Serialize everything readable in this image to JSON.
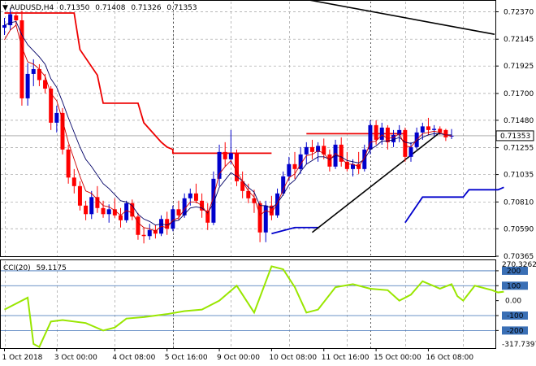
{
  "header": {
    "arrow": "▼",
    "symbol": "AUDUSD,H4",
    "open": "0.71350",
    "high": "0.71408",
    "low": "0.71326",
    "close": "0.71353"
  },
  "cci_header": {
    "label": "CCI(20)",
    "value": "59.1175"
  },
  "price_axis": {
    "ticks": [
      "0.72370",
      "0.72145",
      "0.71925",
      "0.71700",
      "0.71480",
      "0.71255",
      "0.71035",
      "0.70810",
      "0.70590",
      "0.70365"
    ],
    "current_price": "0.71353"
  },
  "cci_axis": {
    "max_label": "270.3262",
    "min_label": "-317.7397",
    "level_labels": [
      "200",
      "100",
      "0.00",
      "-100",
      "-200"
    ]
  },
  "time_axis": {
    "labels": [
      "1 Oct 2018",
      "3 Oct 00:00",
      "4 Oct 08:00",
      "5 Oct 16:00",
      "9 Oct 00:00",
      "10 Oct 08:00",
      "11 Oct 16:00",
      "15 Oct 00:00",
      "16 Oct 08:00"
    ]
  },
  "colors": {
    "bull": "#0000cc",
    "bear": "#ff0000",
    "ma_fast": "#cc0000",
    "ma_slow": "#000066",
    "stop_red": "#ee0000",
    "stop_blue": "#0000cc",
    "cci": "#99e600",
    "cci_level": "#3a6fb5",
    "current_price_box": "#ffffff"
  },
  "chart_data": {
    "type": "candlestick",
    "symbol": "AUDUSD",
    "timeframe": "H4",
    "y_range": [
      0.70365,
      0.7246
    ],
    "candles": [
      {
        "o": 0.7224,
        "h": 0.7232,
        "l": 0.7218,
        "c": 0.7226
      },
      {
        "o": 0.7226,
        "h": 0.724,
        "l": 0.7222,
        "c": 0.7235
      },
      {
        "o": 0.7234,
        "h": 0.7236,
        "l": 0.7226,
        "c": 0.723
      },
      {
        "o": 0.723,
        "h": 0.7238,
        "l": 0.716,
        "c": 0.7166
      },
      {
        "o": 0.7166,
        "h": 0.7195,
        "l": 0.716,
        "c": 0.7186
      },
      {
        "o": 0.7186,
        "h": 0.7198,
        "l": 0.7176,
        "c": 0.719
      },
      {
        "o": 0.719,
        "h": 0.7194,
        "l": 0.7176,
        "c": 0.7181
      },
      {
        "o": 0.7181,
        "h": 0.7186,
        "l": 0.717,
        "c": 0.7174
      },
      {
        "o": 0.7174,
        "h": 0.7176,
        "l": 0.714,
        "c": 0.7146
      },
      {
        "o": 0.7146,
        "h": 0.716,
        "l": 0.7138,
        "c": 0.7154
      },
      {
        "o": 0.7154,
        "h": 0.7158,
        "l": 0.712,
        "c": 0.7124
      },
      {
        "o": 0.7124,
        "h": 0.7128,
        "l": 0.7096,
        "c": 0.7101
      },
      {
        "o": 0.7101,
        "h": 0.7108,
        "l": 0.7088,
        "c": 0.7094
      },
      {
        "o": 0.7094,
        "h": 0.7098,
        "l": 0.7074,
        "c": 0.7078
      },
      {
        "o": 0.7078,
        "h": 0.7082,
        "l": 0.7066,
        "c": 0.7071
      },
      {
        "o": 0.7071,
        "h": 0.709,
        "l": 0.7067,
        "c": 0.7085
      },
      {
        "o": 0.7085,
        "h": 0.7094,
        "l": 0.7072,
        "c": 0.7076
      },
      {
        "o": 0.7076,
        "h": 0.7082,
        "l": 0.7068,
        "c": 0.7071
      },
      {
        "o": 0.7071,
        "h": 0.7079,
        "l": 0.7064,
        "c": 0.7075
      },
      {
        "o": 0.7075,
        "h": 0.7084,
        "l": 0.7068,
        "c": 0.707
      },
      {
        "o": 0.707,
        "h": 0.7076,
        "l": 0.706,
        "c": 0.7066
      },
      {
        "o": 0.7066,
        "h": 0.7082,
        "l": 0.7064,
        "c": 0.708
      },
      {
        "o": 0.708,
        "h": 0.7083,
        "l": 0.7066,
        "c": 0.7069
      },
      {
        "o": 0.7069,
        "h": 0.7072,
        "l": 0.705,
        "c": 0.7054
      },
      {
        "o": 0.7054,
        "h": 0.706,
        "l": 0.7047,
        "c": 0.7053
      },
      {
        "o": 0.7053,
        "h": 0.7063,
        "l": 0.705,
        "c": 0.7058
      },
      {
        "o": 0.7058,
        "h": 0.7062,
        "l": 0.7051,
        "c": 0.7055
      },
      {
        "o": 0.7055,
        "h": 0.707,
        "l": 0.7053,
        "c": 0.7067
      },
      {
        "o": 0.7067,
        "h": 0.7073,
        "l": 0.7054,
        "c": 0.7059
      },
      {
        "o": 0.7059,
        "h": 0.7078,
        "l": 0.7057,
        "c": 0.7075
      },
      {
        "o": 0.7075,
        "h": 0.7082,
        "l": 0.7066,
        "c": 0.707
      },
      {
        "o": 0.707,
        "h": 0.7088,
        "l": 0.7068,
        "c": 0.7084
      },
      {
        "o": 0.7084,
        "h": 0.7092,
        "l": 0.7078,
        "c": 0.7088
      },
      {
        "o": 0.7088,
        "h": 0.7096,
        "l": 0.708,
        "c": 0.7082
      },
      {
        "o": 0.7082,
        "h": 0.7088,
        "l": 0.7068,
        "c": 0.7074
      },
      {
        "o": 0.7074,
        "h": 0.708,
        "l": 0.7058,
        "c": 0.7064
      },
      {
        "o": 0.7064,
        "h": 0.7106,
        "l": 0.7062,
        "c": 0.71
      },
      {
        "o": 0.71,
        "h": 0.7128,
        "l": 0.7094,
        "c": 0.7122
      },
      {
        "o": 0.7122,
        "h": 0.713,
        "l": 0.711,
        "c": 0.7116
      },
      {
        "o": 0.7116,
        "h": 0.714,
        "l": 0.7112,
        "c": 0.7121
      },
      {
        "o": 0.7121,
        "h": 0.7124,
        "l": 0.7094,
        "c": 0.7098
      },
      {
        "o": 0.7098,
        "h": 0.7106,
        "l": 0.7084,
        "c": 0.709
      },
      {
        "o": 0.709,
        "h": 0.7096,
        "l": 0.708,
        "c": 0.7084
      },
      {
        "o": 0.7084,
        "h": 0.7091,
        "l": 0.7072,
        "c": 0.708
      },
      {
        "o": 0.708,
        "h": 0.7082,
        "l": 0.7048,
        "c": 0.7056
      },
      {
        "o": 0.7056,
        "h": 0.7082,
        "l": 0.7048,
        "c": 0.7078
      },
      {
        "o": 0.7078,
        "h": 0.7086,
        "l": 0.7066,
        "c": 0.707
      },
      {
        "o": 0.707,
        "h": 0.7092,
        "l": 0.7068,
        "c": 0.7088
      },
      {
        "o": 0.7088,
        "h": 0.7106,
        "l": 0.7086,
        "c": 0.7102
      },
      {
        "o": 0.7102,
        "h": 0.7118,
        "l": 0.7098,
        "c": 0.7112
      },
      {
        "o": 0.7112,
        "h": 0.7122,
        "l": 0.71,
        "c": 0.7108
      },
      {
        "o": 0.7108,
        "h": 0.7126,
        "l": 0.7104,
        "c": 0.712
      },
      {
        "o": 0.712,
        "h": 0.713,
        "l": 0.7112,
        "c": 0.7126
      },
      {
        "o": 0.7126,
        "h": 0.7132,
        "l": 0.7116,
        "c": 0.7122
      },
      {
        "o": 0.7122,
        "h": 0.713,
        "l": 0.7114,
        "c": 0.7127
      },
      {
        "o": 0.7127,
        "h": 0.7133,
        "l": 0.7116,
        "c": 0.712
      },
      {
        "o": 0.712,
        "h": 0.7124,
        "l": 0.7106,
        "c": 0.711
      },
      {
        "o": 0.711,
        "h": 0.7132,
        "l": 0.7108,
        "c": 0.7128
      },
      {
        "o": 0.7128,
        "h": 0.7134,
        "l": 0.711,
        "c": 0.7114
      },
      {
        "o": 0.7114,
        "h": 0.7122,
        "l": 0.7106,
        "c": 0.7108
      },
      {
        "o": 0.7108,
        "h": 0.7116,
        "l": 0.7102,
        "c": 0.7112
      },
      {
        "o": 0.7112,
        "h": 0.7122,
        "l": 0.7104,
        "c": 0.7108
      },
      {
        "o": 0.7108,
        "h": 0.7128,
        "l": 0.7106,
        "c": 0.7124
      },
      {
        "o": 0.7124,
        "h": 0.7148,
        "l": 0.712,
        "c": 0.7144
      },
      {
        "o": 0.7144,
        "h": 0.7148,
        "l": 0.7128,
        "c": 0.7132
      },
      {
        "o": 0.7132,
        "h": 0.7146,
        "l": 0.7128,
        "c": 0.7142
      },
      {
        "o": 0.7142,
        "h": 0.7144,
        "l": 0.7124,
        "c": 0.713
      },
      {
        "o": 0.713,
        "h": 0.714,
        "l": 0.7126,
        "c": 0.7136
      },
      {
        "o": 0.7136,
        "h": 0.7144,
        "l": 0.713,
        "c": 0.714
      },
      {
        "o": 0.714,
        "h": 0.7142,
        "l": 0.7114,
        "c": 0.7118
      },
      {
        "o": 0.7118,
        "h": 0.713,
        "l": 0.7114,
        "c": 0.7126
      },
      {
        "o": 0.7126,
        "h": 0.7142,
        "l": 0.7124,
        "c": 0.7138
      },
      {
        "o": 0.7138,
        "h": 0.7146,
        "l": 0.7132,
        "c": 0.7143
      },
      {
        "o": 0.7143,
        "h": 0.715,
        "l": 0.7136,
        "c": 0.714
      },
      {
        "o": 0.714,
        "h": 0.7144,
        "l": 0.7135,
        "c": 0.7141
      },
      {
        "o": 0.7141,
        "h": 0.7143,
        "l": 0.7136,
        "c": 0.7138
      },
      {
        "o": 0.714,
        "h": 0.7141,
        "l": 0.7131,
        "c": 0.7134
      },
      {
        "o": 0.7135,
        "h": 0.71408,
        "l": 0.71326,
        "c": 0.71353
      }
    ],
    "ma_fast": [
      0.7214,
      0.7222,
      0.7226,
      0.7208,
      0.7196,
      0.7194,
      0.719,
      0.7184,
      0.717,
      0.7164,
      0.7148,
      0.713,
      0.7116,
      0.7102,
      0.709,
      0.7088,
      0.7083,
      0.7078,
      0.7077,
      0.7074,
      0.707,
      0.7074,
      0.7072,
      0.7064,
      0.706,
      0.7059,
      0.7057,
      0.7061,
      0.706,
      0.7066,
      0.7068,
      0.7075,
      0.7081,
      0.7081,
      0.7078,
      0.7071,
      0.7085,
      0.7104,
      0.711,
      0.7115,
      0.7106,
      0.7098,
      0.709,
      0.7085,
      0.707,
      0.7074,
      0.7072,
      0.708,
      0.7091,
      0.7101,
      0.7104,
      0.7112,
      0.7119,
      0.712,
      0.7123,
      0.7121,
      0.7115,
      0.7121,
      0.7117,
      0.7112,
      0.7112,
      0.711,
      0.7117,
      0.713,
      0.7131,
      0.7136,
      0.7133,
      0.7134,
      0.7137,
      0.7127,
      0.7126,
      0.7132,
      0.7137,
      0.7138,
      0.7139,
      0.7138,
      0.7136,
      0.7135
    ],
    "ma_slow": [
      0.7226,
      0.7228,
      0.7229,
      0.7218,
      0.721,
      0.7205,
      0.72,
      0.7194,
      0.7182,
      0.7175,
      0.7163,
      0.715,
      0.7138,
      0.7126,
      0.7116,
      0.711,
      0.7103,
      0.7096,
      0.7092,
      0.7087,
      0.7082,
      0.7081,
      0.7078,
      0.7071,
      0.7067,
      0.7065,
      0.7062,
      0.7063,
      0.7062,
      0.7065,
      0.7066,
      0.7071,
      0.7076,
      0.7077,
      0.7076,
      0.7072,
      0.708,
      0.7093,
      0.7099,
      0.7105,
      0.7102,
      0.7098,
      0.7093,
      0.7089,
      0.7078,
      0.7078,
      0.7076,
      0.708,
      0.7087,
      0.7095,
      0.7099,
      0.7106,
      0.7112,
      0.7115,
      0.7118,
      0.7118,
      0.7116,
      0.7119,
      0.7118,
      0.7115,
      0.7114,
      0.7113,
      0.7116,
      0.7124,
      0.7127,
      0.7131,
      0.7131,
      0.7132,
      0.7134,
      0.713,
      0.7129,
      0.7131,
      0.7134,
      0.7136,
      0.7137,
      0.7137,
      0.7136,
      0.7136
    ],
    "stop_red": [
      [
        [
          0,
          0.7236
        ],
        [
          4,
          0.7236
        ],
        [
          4,
          0.7236
        ],
        [
          12,
          0.7236
        ],
        [
          13,
          0.7206
        ],
        [
          16,
          0.7185
        ],
        [
          17,
          0.7162
        ],
        [
          23,
          0.7162
        ],
        [
          24,
          0.7146
        ],
        [
          27,
          0.713
        ],
        [
          28,
          0.7126
        ],
        [
          29,
          0.7124
        ],
        [
          29,
          0.7121
        ],
        [
          34,
          0.7121
        ],
        [
          34,
          0.7121
        ],
        [
          46,
          0.7121
        ]
      ],
      [
        [
          52,
          0.7137
        ],
        [
          69,
          0.7137
        ]
      ]
    ],
    "stop_blue": [
      [
        [
          46,
          0.7055
        ],
        [
          50,
          0.706
        ],
        [
          50,
          0.706
        ],
        [
          54,
          0.706
        ]
      ],
      [
        [
          69,
          0.7064
        ],
        [
          72,
          0.7085
        ],
        [
          73,
          0.7085
        ],
        [
          79,
          0.7085
        ],
        [
          80,
          0.7091
        ],
        [
          85,
          0.7091
        ],
        [
          86,
          0.7093
        ]
      ]
    ],
    "trendlines": [
      {
        "x1": 43,
        "y1": 0.7255,
        "x2": 91,
        "y2": 0.72185
      },
      {
        "x1": 53,
        "y1": 0.7056,
        "x2": 75,
        "y2": 0.7138
      }
    ],
    "cci": [
      {
        "x": 0,
        "y": -60
      },
      {
        "x": 4,
        "y": 20
      },
      {
        "x": 5,
        "y": -290
      },
      {
        "x": 6,
        "y": -310
      },
      {
        "x": 8,
        "y": -140
      },
      {
        "x": 10,
        "y": -130
      },
      {
        "x": 14,
        "y": -150
      },
      {
        "x": 17,
        "y": -200
      },
      {
        "x": 19,
        "y": -180
      },
      {
        "x": 21,
        "y": -120
      },
      {
        "x": 24,
        "y": -110
      },
      {
        "x": 28,
        "y": -90
      },
      {
        "x": 31,
        "y": -70
      },
      {
        "x": 34,
        "y": -60
      },
      {
        "x": 37,
        "y": 0
      },
      {
        "x": 40,
        "y": 100
      },
      {
        "x": 43,
        "y": -80
      },
      {
        "x": 46,
        "y": 230
      },
      {
        "x": 48,
        "y": 210
      },
      {
        "x": 50,
        "y": 90
      },
      {
        "x": 52,
        "y": -80
      },
      {
        "x": 54,
        "y": -60
      },
      {
        "x": 57,
        "y": 90
      },
      {
        "x": 60,
        "y": 110
      },
      {
        "x": 63,
        "y": 80
      },
      {
        "x": 66,
        "y": 70
      },
      {
        "x": 68,
        "y": 0
      },
      {
        "x": 70,
        "y": 40
      },
      {
        "x": 72,
        "y": 130
      },
      {
        "x": 75,
        "y": 80
      },
      {
        "x": 77,
        "y": 110
      },
      {
        "x": 78,
        "y": 30
      },
      {
        "x": 79,
        "y": 0
      },
      {
        "x": 81,
        "y": 100
      },
      {
        "x": 84,
        "y": 70
      },
      {
        "x": 85,
        "y": 55
      },
      {
        "x": 86,
        "y": 60
      }
    ]
  }
}
